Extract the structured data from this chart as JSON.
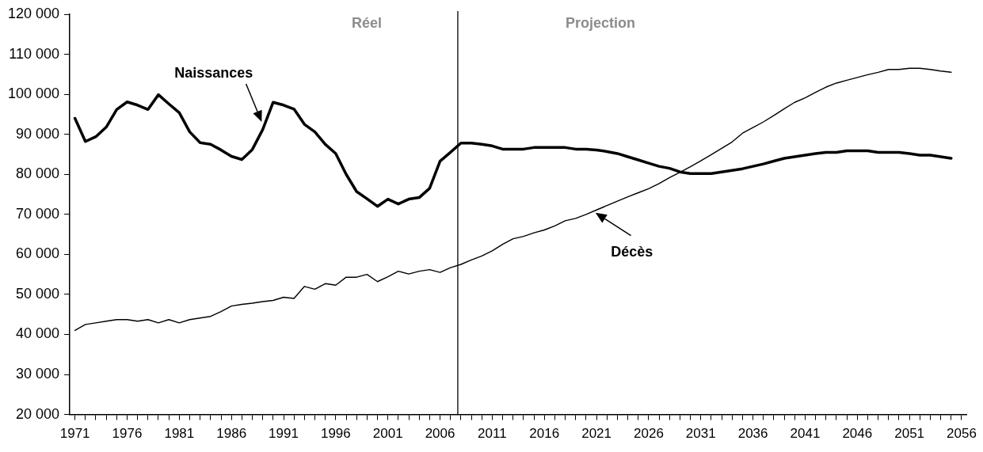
{
  "chart_data": {
    "type": "line",
    "x": [
      1971,
      1972,
      1973,
      1974,
      1975,
      1976,
      1977,
      1978,
      1979,
      1980,
      1981,
      1982,
      1983,
      1984,
      1985,
      1986,
      1987,
      1988,
      1989,
      1990,
      1991,
      1992,
      1993,
      1994,
      1995,
      1996,
      1997,
      1998,
      1999,
      2000,
      2001,
      2002,
      2003,
      2004,
      2005,
      2006,
      2007,
      2008,
      2009,
      2010,
      2011,
      2012,
      2013,
      2014,
      2015,
      2016,
      2017,
      2018,
      2019,
      2020,
      2021,
      2022,
      2023,
      2024,
      2025,
      2026,
      2027,
      2028,
      2029,
      2030,
      2031,
      2032,
      2033,
      2034,
      2035,
      2036,
      2037,
      2038,
      2039,
      2040,
      2041,
      2042,
      2043,
      2044,
      2045,
      2046,
      2047,
      2048,
      2049,
      2050,
      2051,
      2052,
      2053,
      2054,
      2055
    ],
    "series": [
      {
        "name": "Naissances",
        "color": "#000000",
        "values": [
          94000,
          88200,
          89400,
          91800,
          96200,
          98100,
          97300,
          96200,
          99900,
          97600,
          95400,
          90600,
          87900,
          87500,
          86100,
          84500,
          83700,
          86200,
          91200,
          98000,
          97300,
          96300,
          92500,
          90600,
          87500,
          85200,
          80000,
          75700,
          73900,
          72000,
          73800,
          72600,
          73800,
          74200,
          76500,
          83300,
          85500,
          87800,
          87800,
          87500,
          87100,
          86300,
          86300,
          86300,
          86700,
          86700,
          86700,
          86700,
          86300,
          86300,
          86100,
          85700,
          85200,
          84400,
          83600,
          82800,
          82000,
          81500,
          80600,
          80200,
          80200,
          80200,
          80600,
          81000,
          81400,
          82000,
          82600,
          83300,
          84000,
          84400,
          84800,
          85200,
          85500,
          85500,
          85900,
          85900,
          85900,
          85500,
          85500,
          85500,
          85200,
          84800,
          84800,
          84400,
          84000
        ]
      },
      {
        "name": "Décès",
        "color": "#000000",
        "values": [
          41000,
          42500,
          42900,
          43300,
          43700,
          43700,
          43300,
          43700,
          42900,
          43700,
          42900,
          43700,
          44100,
          44500,
          45700,
          47100,
          47500,
          47800,
          48200,
          48500,
          49300,
          49000,
          52000,
          51300,
          52700,
          52300,
          54300,
          54300,
          55000,
          53200,
          54400,
          55800,
          55100,
          55800,
          56200,
          55500,
          56700,
          57500,
          58600,
          59600,
          60900,
          62500,
          63900,
          64500,
          65400,
          66100,
          67100,
          68400,
          69000,
          70000,
          71100,
          72200,
          73300,
          74400,
          75400,
          76400,
          77700,
          79200,
          80500,
          81900,
          83400,
          84900,
          86500,
          88100,
          90300,
          91700,
          93100,
          94700,
          96400,
          98000,
          99100,
          100500,
          101800,
          102800,
          103500,
          104200,
          104900,
          105500,
          106200,
          106200,
          106500,
          106500,
          106200,
          105800,
          105500
        ]
      }
    ],
    "xlim": [
      1970.5,
      2056.5
    ],
    "xticks": [
      1971,
      {
        "value": 1972,
        "label": null
      },
      {
        "value": 1973,
        "label": null
      },
      {
        "value": 1974,
        "label": null
      },
      {
        "value": 1975,
        "label": null
      },
      1976,
      {
        "value": 1977,
        "label": null
      },
      {
        "value": 1978,
        "label": null
      },
      {
        "value": 1979,
        "label": null
      },
      {
        "value": 1980,
        "label": null
      },
      1981,
      {
        "value": 1982,
        "label": null
      },
      {
        "value": 1983,
        "label": null
      },
      {
        "value": 1984,
        "label": null
      },
      {
        "value": 1985,
        "label": null
      },
      1986,
      {
        "value": 1987,
        "label": null
      },
      {
        "value": 1988,
        "label": null
      },
      {
        "value": 1989,
        "label": null
      },
      {
        "value": 1990,
        "label": null
      },
      1991,
      {
        "value": 1992,
        "label": null
      },
      {
        "value": 1993,
        "label": null
      },
      {
        "value": 1994,
        "label": null
      },
      {
        "value": 1995,
        "label": null
      },
      1996,
      {
        "value": 1997,
        "label": null
      },
      {
        "value": 1998,
        "label": null
      },
      {
        "value": 1999,
        "label": null
      },
      {
        "value": 2000,
        "label": null
      },
      2001,
      {
        "value": 2002,
        "label": null
      },
      {
        "value": 2003,
        "label": null
      },
      {
        "value": 2004,
        "label": null
      },
      {
        "value": 2005,
        "label": null
      },
      2006,
      {
        "value": 2007,
        "label": null
      },
      {
        "value": 2008,
        "label": null
      },
      {
        "value": 2009,
        "label": null
      },
      {
        "value": 2010,
        "label": null
      },
      2011,
      {
        "value": 2012,
        "label": null
      },
      {
        "value": 2013,
        "label": null
      },
      {
        "value": 2014,
        "label": null
      },
      {
        "value": 2015,
        "label": null
      },
      2016,
      {
        "value": 2017,
        "label": null
      },
      {
        "value": 2018,
        "label": null
      },
      {
        "value": 2019,
        "label": null
      },
      {
        "value": 2020,
        "label": null
      },
      2021,
      {
        "value": 2022,
        "label": null
      },
      {
        "value": 2023,
        "label": null
      },
      {
        "value": 2024,
        "label": null
      },
      {
        "value": 2025,
        "label": null
      },
      2026,
      {
        "value": 2027,
        "label": null
      },
      {
        "value": 2028,
        "label": null
      },
      {
        "value": 2029,
        "label": null
      },
      {
        "value": 2030,
        "label": null
      },
      2031,
      {
        "value": 2032,
        "label": null
      },
      {
        "value": 2033,
        "label": null
      },
      {
        "value": 2034,
        "label": null
      },
      {
        "value": 2035,
        "label": null
      },
      2036,
      {
        "value": 2037,
        "label": null
      },
      {
        "value": 2038,
        "label": null
      },
      {
        "value": 2039,
        "label": null
      },
      {
        "value": 2040,
        "label": null
      },
      2041,
      {
        "value": 2042,
        "label": null
      },
      {
        "value": 2043,
        "label": null
      },
      {
        "value": 2044,
        "label": null
      },
      {
        "value": 2045,
        "label": null
      },
      2046,
      {
        "value": 2047,
        "label": null
      },
      {
        "value": 2048,
        "label": null
      },
      {
        "value": 2049,
        "label": null
      },
      {
        "value": 2050,
        "label": null
      },
      2051,
      {
        "value": 2052,
        "label": null
      },
      {
        "value": 2053,
        "label": null
      },
      {
        "value": 2054,
        "label": null
      },
      {
        "value": 2055,
        "label": null
      },
      2056
    ],
    "ylim": [
      20000,
      120000
    ],
    "yticks": [
      {
        "value": 20000,
        "label": "20 000"
      },
      {
        "value": 30000,
        "label": "30 000"
      },
      {
        "value": 40000,
        "label": "40 000"
      },
      {
        "value": 50000,
        "label": "50 000"
      },
      {
        "value": 60000,
        "label": "60 000"
      },
      {
        "value": 70000,
        "label": "70 000"
      },
      {
        "value": 80000,
        "label": "80 000"
      },
      {
        "value": 90000,
        "label": "90 000"
      },
      {
        "value": 100000,
        "label": "100 000"
      },
      {
        "value": 110000,
        "label": "110 000"
      },
      {
        "value": 120000,
        "label": "120 000"
      }
    ],
    "ref_lines": [
      {
        "axis": "x",
        "value": 2007.7,
        "color": "#000000"
      }
    ],
    "annotations": [
      "Réel",
      "Projection"
    ],
    "marker": "none",
    "line_style": "solid"
  }
}
